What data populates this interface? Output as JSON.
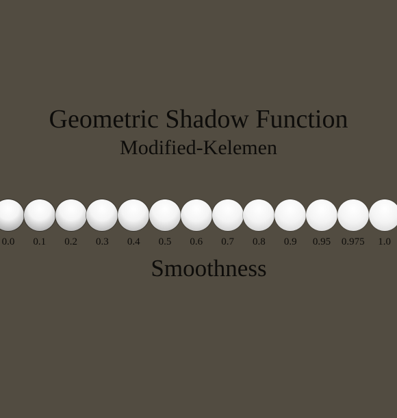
{
  "header": {
    "title": "Geometric Shadow Function",
    "subtitle": "Modified-Kelemen"
  },
  "axis": {
    "title": "Smoothness"
  },
  "samples": [
    {
      "label": "0.0",
      "smoothness": 0.0
    },
    {
      "label": "0.1",
      "smoothness": 0.1
    },
    {
      "label": "0.2",
      "smoothness": 0.2
    },
    {
      "label": "0.3",
      "smoothness": 0.3
    },
    {
      "label": "0.4",
      "smoothness": 0.4
    },
    {
      "label": "0.5",
      "smoothness": 0.5
    },
    {
      "label": "0.6",
      "smoothness": 0.6
    },
    {
      "label": "0.7",
      "smoothness": 0.7
    },
    {
      "label": "0.8",
      "smoothness": 0.8
    },
    {
      "label": "0.9",
      "smoothness": 0.9
    },
    {
      "label": "0.95",
      "smoothness": 0.95
    },
    {
      "label": "0.975",
      "smoothness": 0.975
    },
    {
      "label": "1.0",
      "smoothness": 1.0
    }
  ],
  "colors": {
    "background": "#524c41",
    "text": "#0d0c0a",
    "sphere_highlight": "#ffffff",
    "sphere_shadow": "#2e2a24"
  }
}
